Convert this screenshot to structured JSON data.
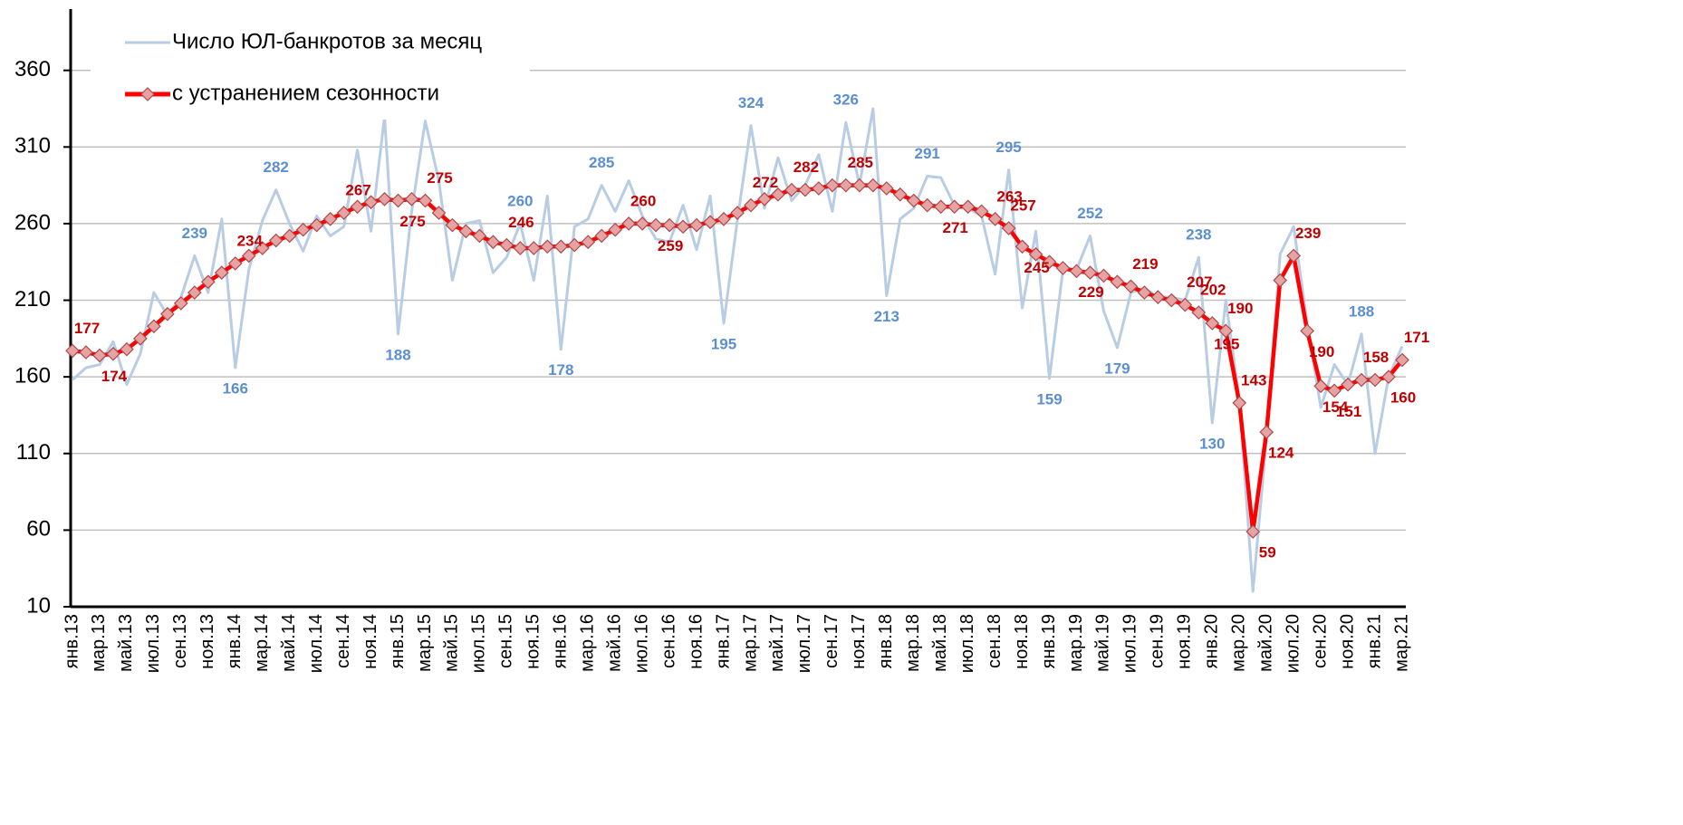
{
  "chart_data": {
    "type": "line",
    "categories": [
      "янв.13",
      null,
      "мар.13",
      null,
      "май.13",
      null,
      "июл.13",
      null,
      "сен.13",
      null,
      "ноя.13",
      null,
      "янв.14",
      null,
      "мар.14",
      null,
      "май.14",
      null,
      "июл.14",
      null,
      "сен.14",
      null,
      "ноя.14",
      null,
      "янв.15",
      null,
      "мар.15",
      null,
      "май.15",
      null,
      "июл.15",
      null,
      "сен.15",
      null,
      "ноя.15",
      null,
      "янв.16",
      null,
      "мар.16",
      null,
      "май.16",
      null,
      "июл.16",
      null,
      "сен.16",
      null,
      "ноя.16",
      null,
      "янв.17",
      null,
      "мар.17",
      null,
      "май.17",
      null,
      "июл.17",
      null,
      "сен.17",
      null,
      "ноя.17",
      null,
      "янв.18",
      null,
      "мар.18",
      null,
      "май.18",
      null,
      "июл.18",
      null,
      "сен.18",
      null,
      "ноя.18",
      null,
      "янв.19",
      null,
      "мар.19",
      null,
      "май.19",
      null,
      "июл.19",
      null,
      "сен.19",
      null,
      "ноя.19",
      null,
      "янв.20",
      null,
      "мар.20",
      null,
      "май.20",
      null,
      "июл.20",
      null,
      "сен.20",
      null,
      "ноя.20",
      null,
      "янв.21",
      null,
      "мар.21"
    ],
    "series": [
      {
        "name": "Число ЮЛ-банкротов за месяц",
        "color": "#b8cce4",
        "label_color": "#5b8fd1",
        "values": [
          158,
          166,
          168,
          183,
          155,
          175,
          215,
          200,
          212,
          239,
          215,
          263,
          166,
          230,
          262,
          282,
          260,
          242,
          265,
          252,
          258,
          308,
          255,
          330,
          188,
          268,
          327,
          288,
          223,
          260,
          262,
          228,
          238,
          260,
          223,
          278,
          178,
          258,
          263,
          285,
          268,
          288,
          265,
          250,
          248,
          272,
          243,
          278,
          195,
          262,
          324,
          270,
          303,
          275,
          285,
          305,
          268,
          326,
          285,
          335,
          213,
          263,
          270,
          291,
          290,
          272,
          270,
          265,
          227,
          295,
          205,
          255,
          159,
          230,
          230,
          252,
          203,
          179,
          215,
          218,
          212,
          212,
          210,
          238,
          130,
          210,
          145,
          20,
          120,
          240,
          258,
          195,
          140,
          168,
          155,
          188,
          110,
          160,
          180
        ],
        "value_labels": [
          null,
          null,
          null,
          null,
          null,
          null,
          null,
          null,
          null,
          "239",
          null,
          null,
          "166",
          null,
          null,
          "282",
          null,
          null,
          null,
          null,
          null,
          null,
          null,
          null,
          "188",
          null,
          null,
          null,
          null,
          null,
          null,
          null,
          null,
          "260",
          null,
          null,
          "178",
          null,
          null,
          "285",
          null,
          null,
          null,
          null,
          null,
          null,
          null,
          null,
          "195",
          null,
          "324",
          null,
          null,
          null,
          null,
          null,
          null,
          "326",
          null,
          null,
          "213",
          null,
          null,
          "291",
          null,
          null,
          null,
          null,
          null,
          "295",
          null,
          null,
          "159",
          null,
          null,
          "252",
          null,
          "179",
          null,
          null,
          null,
          null,
          null,
          "238",
          "130",
          null,
          null,
          null,
          null,
          null,
          null,
          null,
          null,
          null,
          null,
          "188",
          null,
          null,
          null
        ]
      },
      {
        "name": "с устранением сезонности",
        "color": "#ff0000",
        "label_color": "#c00000",
        "values": [
          177,
          176,
          174,
          175,
          178,
          185,
          193,
          201,
          208,
          215,
          222,
          228,
          234,
          239,
          244,
          249,
          252,
          256,
          259,
          263,
          267,
          271,
          274,
          276,
          275,
          276,
          275,
          267,
          259,
          255,
          252,
          248,
          246,
          244,
          244,
          245,
          245,
          246,
          248,
          252,
          256,
          260,
          260,
          259,
          259,
          258,
          259,
          261,
          263,
          267,
          272,
          276,
          279,
          282,
          282,
          283,
          285,
          285,
          285,
          285,
          283,
          279,
          275,
          272,
          271,
          271,
          271,
          268,
          263,
          257,
          245,
          240,
          235,
          231,
          229,
          228,
          226,
          222,
          219,
          215,
          212,
          210,
          207,
          202,
          195,
          190,
          143,
          59,
          124,
          223,
          239,
          190,
          154,
          151,
          155,
          158,
          158,
          160,
          171
        ],
        "value_labels": [
          "177",
          null,
          "174",
          null,
          null,
          null,
          null,
          null,
          null,
          null,
          null,
          null,
          "234",
          null,
          null,
          null,
          null,
          null,
          null,
          null,
          "267",
          null,
          null,
          null,
          "275",
          null,
          "275",
          null,
          null,
          null,
          null,
          null,
          "246",
          null,
          null,
          null,
          null,
          null,
          null,
          null,
          null,
          "260",
          null,
          "259",
          null,
          null,
          null,
          null,
          null,
          null,
          "272",
          null,
          null,
          "282",
          null,
          null,
          null,
          "285",
          null,
          null,
          null,
          null,
          null,
          null,
          "271",
          null,
          null,
          null,
          "263",
          "257",
          "245",
          null,
          null,
          null,
          "229",
          null,
          null,
          null,
          "219",
          null,
          null,
          null,
          "207",
          "202",
          "195",
          "190",
          "143",
          "59",
          "124",
          null,
          "239",
          "190",
          "154",
          "151",
          null,
          "158",
          null,
          "160",
          "171"
        ]
      }
    ],
    "ylim": [
      10,
      400
    ],
    "yticks": [
      10,
      60,
      110,
      160,
      210,
      260,
      310,
      360
    ],
    "grid": true,
    "legend": "upper left"
  }
}
